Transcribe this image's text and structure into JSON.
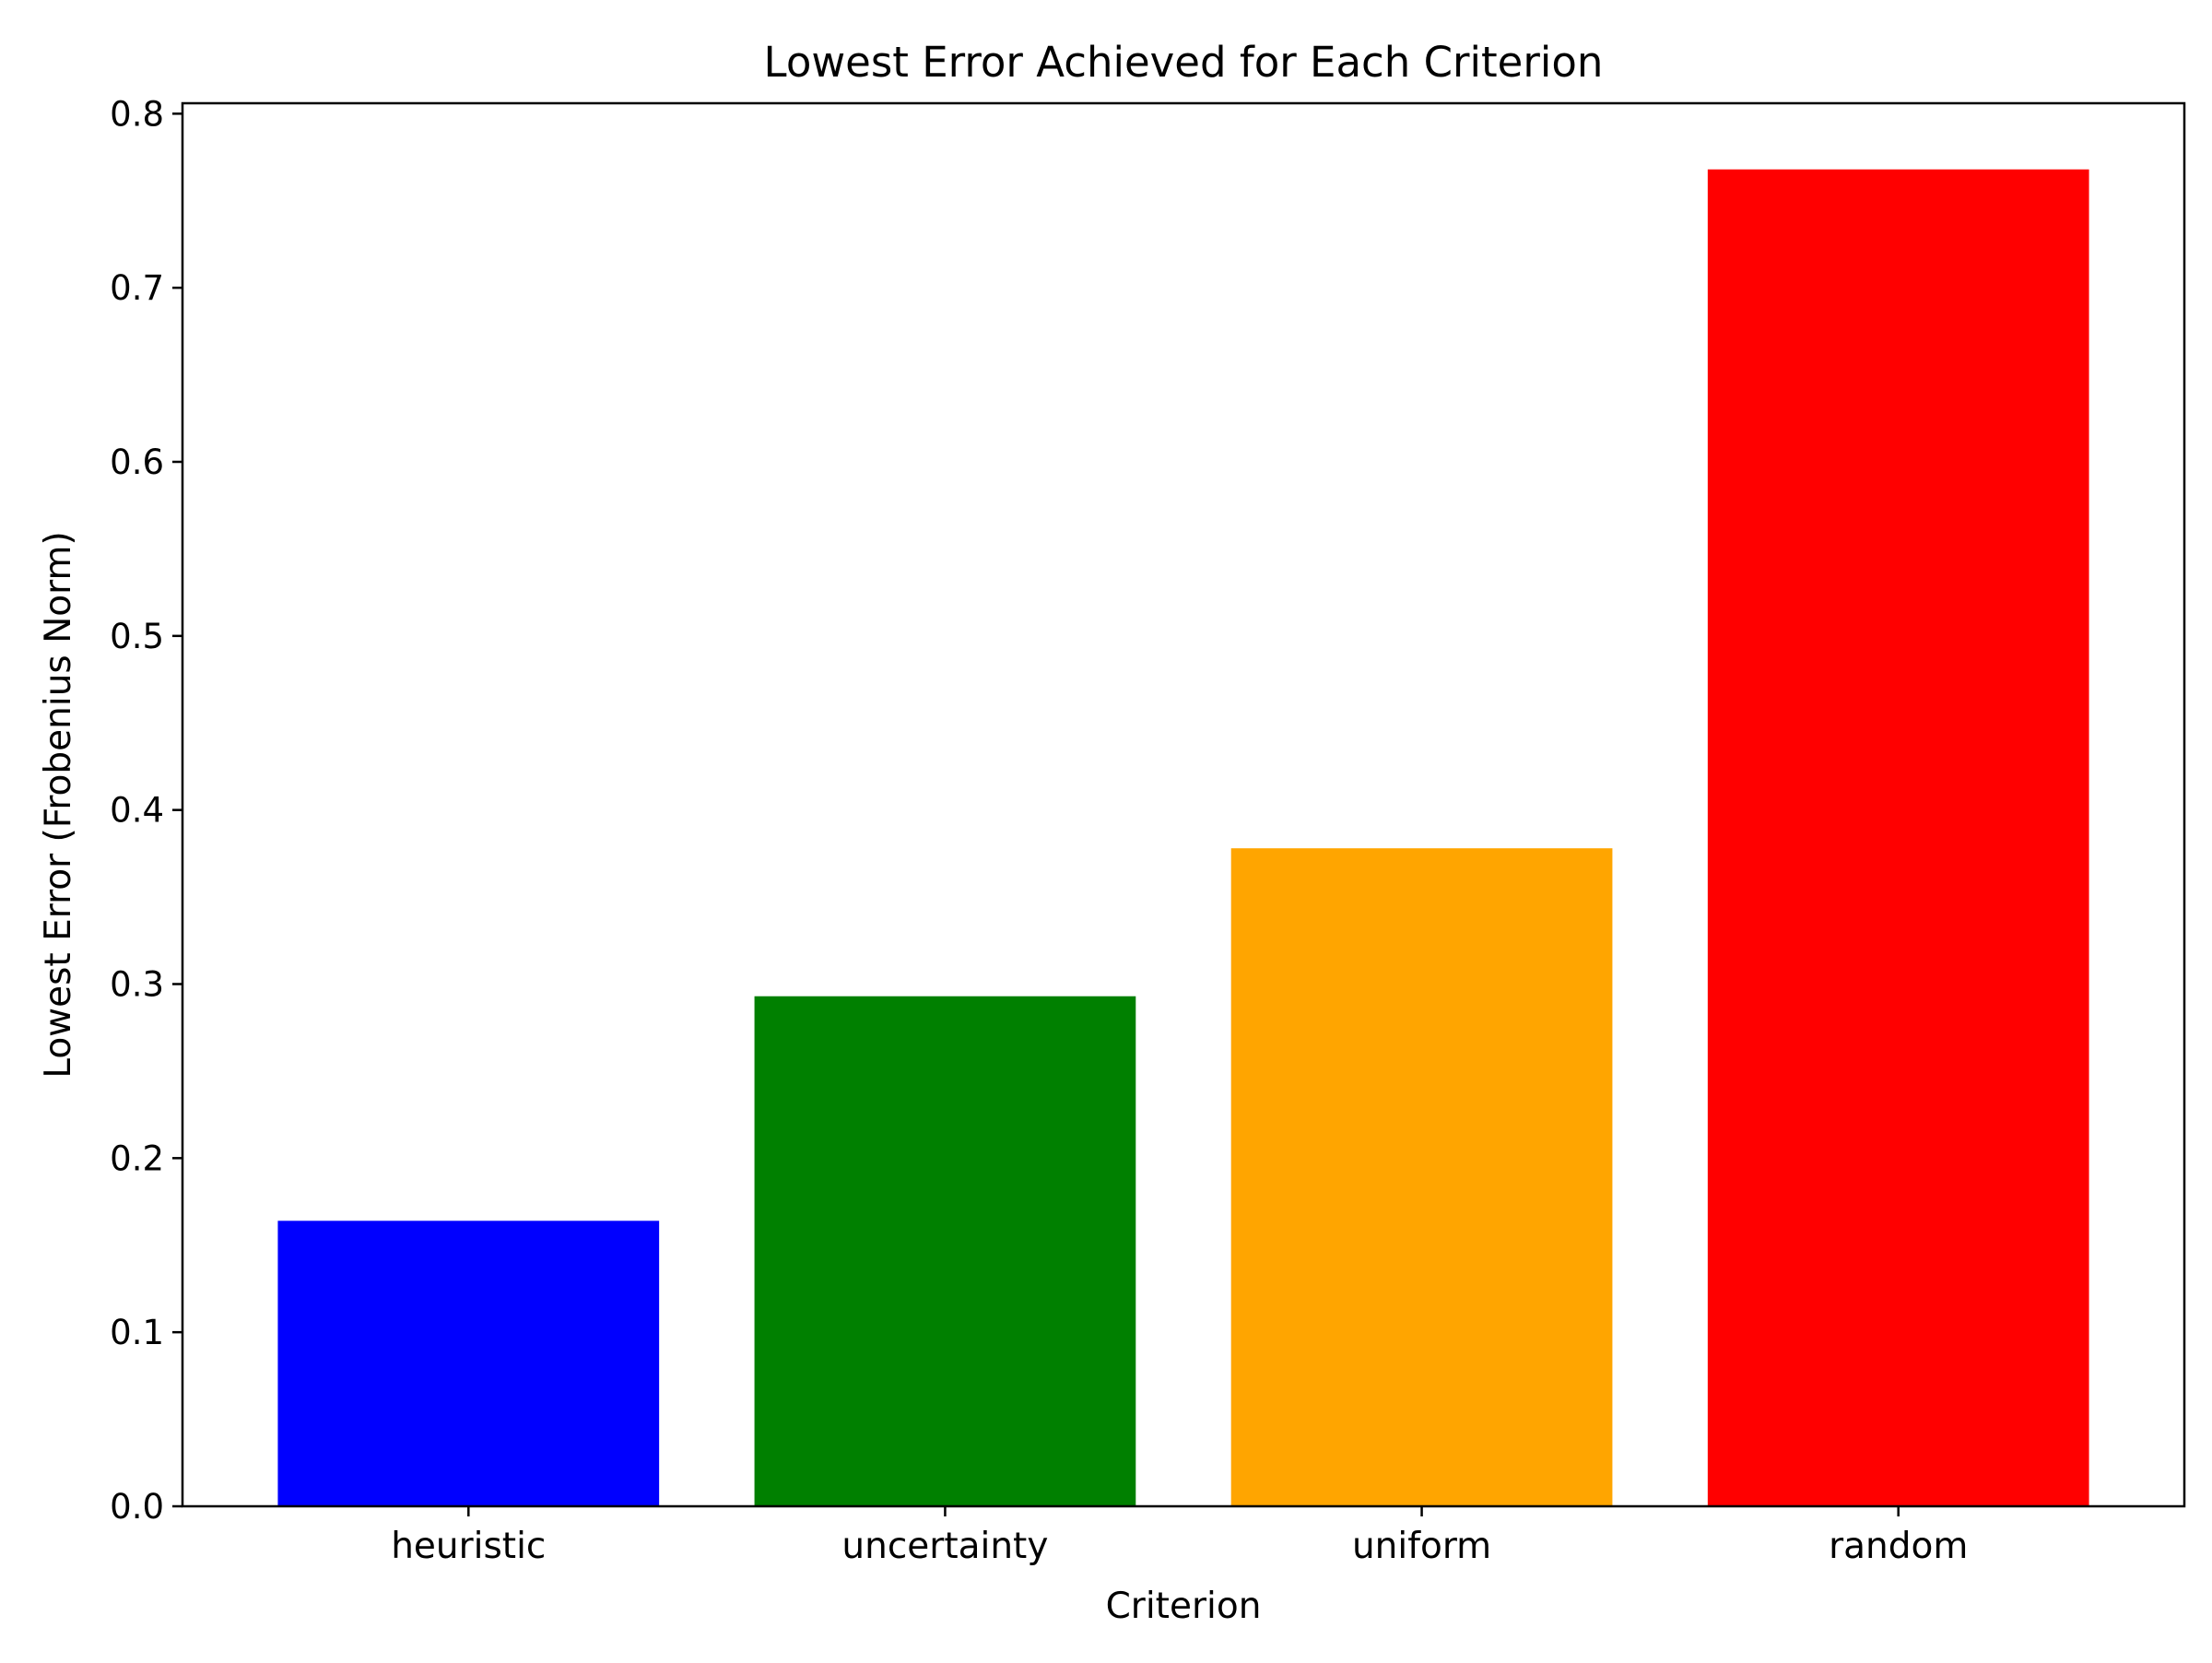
{
  "chart_data": {
    "type": "bar",
    "title": "Lowest Error Achieved for Each Criterion",
    "xlabel": "Criterion",
    "ylabel": "Lowest Error (Frobenius Norm)",
    "categories": [
      "heuristic",
      "uncertainty",
      "uniform",
      "random"
    ],
    "values": [
      0.164,
      0.293,
      0.378,
      0.768
    ],
    "colors": [
      "#0000ff",
      "#008000",
      "#ffa500",
      "#ff0000"
    ],
    "ylim": [
      0,
      0.806
    ],
    "yticks": [
      0.0,
      0.1,
      0.2,
      0.3,
      0.4,
      0.5,
      0.6,
      0.7,
      0.8
    ],
    "ytick_labels": [
      "0.0",
      "0.1",
      "0.2",
      "0.3",
      "0.4",
      "0.5",
      "0.6",
      "0.7",
      "0.8"
    ],
    "grid": false,
    "legend": false
  }
}
